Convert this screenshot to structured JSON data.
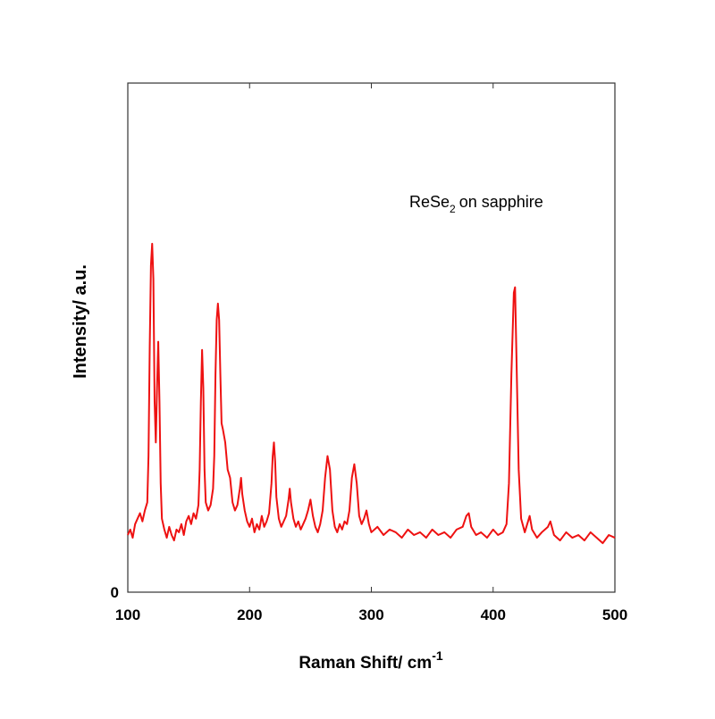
{
  "chart_data": {
    "type": "line",
    "x_label": "Raman Shift/ cm",
    "x_label_superscript": "-1",
    "y_label": "Intensity/ a.u.",
    "annotation": {
      "text": "ReSe",
      "subscript": "2",
      "suffix": "on sapphire"
    },
    "xlim": [
      100,
      500
    ],
    "xticks": [
      100,
      200,
      300,
      400,
      500
    ],
    "ylim": [
      0,
      1.87
    ],
    "yticks": [
      0
    ],
    "series": [
      {
        "name": "ReSe2",
        "color": "#ee1111",
        "x": [
          100,
          102,
          104,
          106,
          108,
          110,
          112,
          114,
          116,
          117,
          118,
          119,
          120,
          121,
          122,
          123,
          124,
          125,
          126,
          127,
          128,
          130,
          132,
          134,
          136,
          138,
          140,
          142,
          144,
          146,
          148,
          150,
          152,
          154,
          156,
          158,
          159,
          160,
          161,
          162,
          163,
          164,
          166,
          168,
          170,
          171,
          172,
          173,
          174,
          175,
          176,
          177,
          178,
          180,
          182,
          184,
          186,
          188,
          190,
          192,
          193,
          194,
          196,
          198,
          200,
          202,
          204,
          206,
          208,
          210,
          212,
          214,
          216,
          218,
          219,
          220,
          221,
          222,
          224,
          226,
          228,
          230,
          232,
          233,
          234,
          236,
          238,
          240,
          242,
          244,
          246,
          248,
          250,
          252,
          254,
          256,
          258,
          260,
          262,
          264,
          266,
          268,
          270,
          272,
          274,
          276,
          278,
          280,
          282,
          284,
          286,
          288,
          290,
          292,
          294,
          296,
          298,
          300,
          305,
          310,
          315,
          320,
          325,
          330,
          335,
          340,
          345,
          350,
          355,
          360,
          365,
          370,
          375,
          378,
          380,
          382,
          386,
          390,
          395,
          400,
          404,
          408,
          411,
          413,
          415,
          417,
          418,
          419,
          421,
          423,
          426,
          428,
          430,
          432,
          436,
          440,
          445,
          447,
          450,
          455,
          460,
          465,
          470,
          475,
          480,
          485,
          490,
          495,
          500
        ],
        "values": [
          0.21,
          0.23,
          0.2,
          0.25,
          0.27,
          0.29,
          0.26,
          0.3,
          0.33,
          0.5,
          0.9,
          1.2,
          1.28,
          1.15,
          0.7,
          0.55,
          0.75,
          0.92,
          0.7,
          0.4,
          0.27,
          0.23,
          0.2,
          0.24,
          0.21,
          0.19,
          0.23,
          0.22,
          0.25,
          0.21,
          0.26,
          0.28,
          0.25,
          0.29,
          0.27,
          0.32,
          0.45,
          0.7,
          0.89,
          0.75,
          0.45,
          0.33,
          0.3,
          0.32,
          0.38,
          0.5,
          0.8,
          1.0,
          1.06,
          1.0,
          0.8,
          0.62,
          0.6,
          0.55,
          0.45,
          0.42,
          0.33,
          0.3,
          0.32,
          0.38,
          0.42,
          0.36,
          0.3,
          0.26,
          0.24,
          0.27,
          0.22,
          0.25,
          0.23,
          0.28,
          0.24,
          0.26,
          0.29,
          0.4,
          0.5,
          0.55,
          0.48,
          0.35,
          0.27,
          0.24,
          0.26,
          0.28,
          0.34,
          0.38,
          0.33,
          0.27,
          0.24,
          0.26,
          0.23,
          0.25,
          0.27,
          0.3,
          0.34,
          0.28,
          0.24,
          0.22,
          0.25,
          0.3,
          0.42,
          0.5,
          0.45,
          0.3,
          0.24,
          0.22,
          0.25,
          0.23,
          0.26,
          0.25,
          0.3,
          0.42,
          0.47,
          0.4,
          0.28,
          0.25,
          0.27,
          0.3,
          0.25,
          0.22,
          0.24,
          0.21,
          0.23,
          0.22,
          0.2,
          0.23,
          0.21,
          0.22,
          0.2,
          0.23,
          0.21,
          0.22,
          0.2,
          0.23,
          0.24,
          0.28,
          0.29,
          0.24,
          0.21,
          0.22,
          0.2,
          0.23,
          0.21,
          0.22,
          0.25,
          0.4,
          0.8,
          1.1,
          1.12,
          0.9,
          0.45,
          0.27,
          0.22,
          0.25,
          0.28,
          0.23,
          0.2,
          0.22,
          0.24,
          0.26,
          0.21,
          0.19,
          0.22,
          0.2,
          0.21,
          0.19,
          0.22,
          0.2,
          0.18,
          0.21,
          0.2
        ]
      }
    ]
  }
}
